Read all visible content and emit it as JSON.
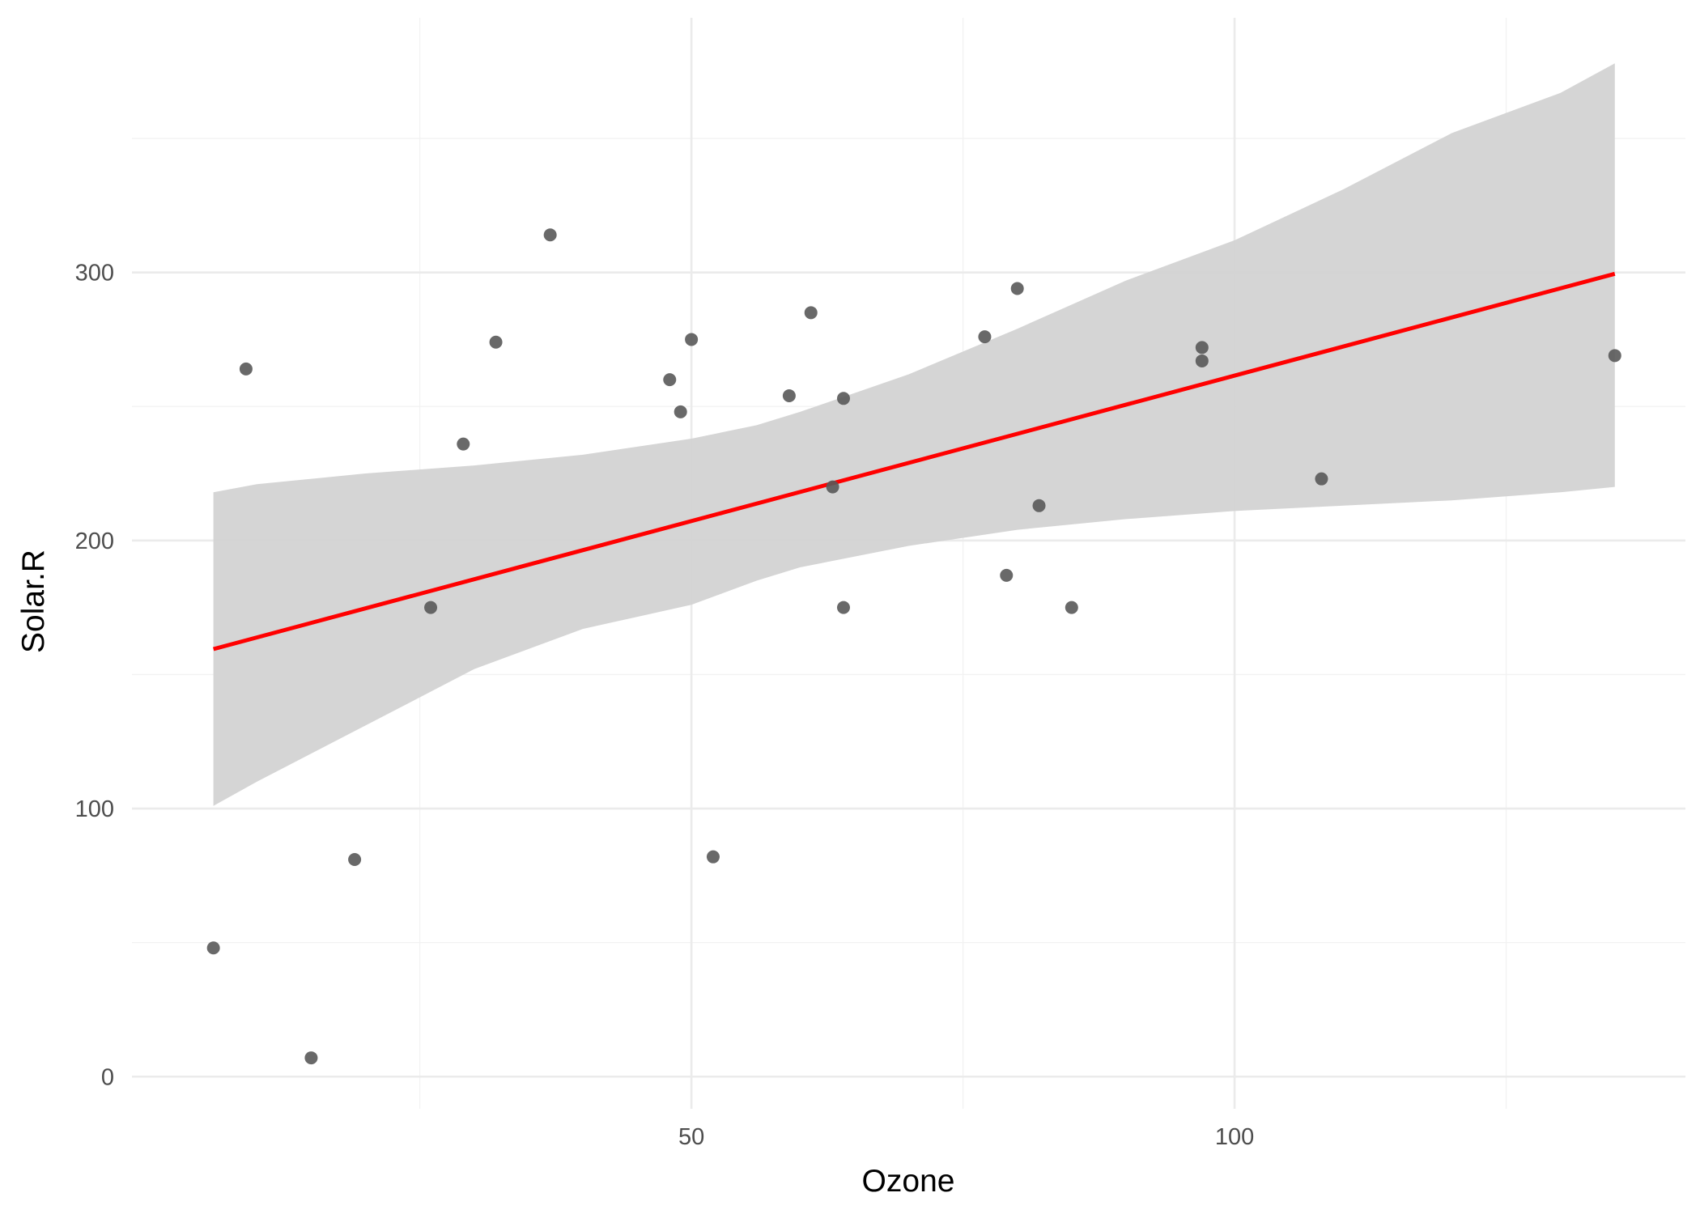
{
  "chart_data": {
    "type": "scatter",
    "title": "",
    "xlabel": "Ozone",
    "ylabel": "Solar.R",
    "xlim": [
      -1.5,
      141.5
    ],
    "ylim": [
      -12,
      395
    ],
    "x_ticks": [
      50,
      100
    ],
    "x_tick_labels": [
      "50",
      "100"
    ],
    "x_minor_ticks": [
      25,
      75,
      125
    ],
    "y_ticks": [
      0,
      100,
      200,
      300
    ],
    "y_tick_labels": [
      "0",
      "100",
      "200",
      "300"
    ],
    "y_minor_ticks": [
      50,
      150,
      250,
      350
    ],
    "grid": true,
    "legend": "none",
    "points": {
      "color": "#595959",
      "x": [
        6,
        9,
        15,
        19,
        26,
        29,
        32,
        37,
        48,
        49,
        50,
        52,
        59,
        61,
        63,
        64,
        64,
        77,
        79,
        80,
        82,
        85,
        97,
        97,
        108,
        135
      ],
      "y": [
        48,
        264,
        7,
        81,
        175,
        236,
        274,
        314,
        260,
        248,
        275,
        82,
        254,
        285,
        220,
        253,
        175,
        276,
        187,
        294,
        213,
        175,
        272,
        267,
        223,
        269
      ]
    },
    "fit_line": {
      "color": "#ff0000",
      "x": [
        6,
        135
      ],
      "y": [
        159.5,
        299.5
      ]
    },
    "confidence_band": {
      "color": "#d3d3d3",
      "x": [
        6,
        10,
        20,
        30,
        40,
        50,
        56,
        60,
        70,
        80,
        90,
        100,
        110,
        120,
        130,
        135
      ],
      "upper": [
        218,
        221,
        225,
        228,
        232,
        238,
        243,
        248,
        262,
        279,
        297,
        312,
        331,
        352,
        367,
        378
      ],
      "lower": [
        101,
        110,
        131,
        152,
        167,
        176,
        185,
        190,
        198,
        204,
        208,
        211,
        213,
        215,
        218,
        220
      ]
    }
  }
}
